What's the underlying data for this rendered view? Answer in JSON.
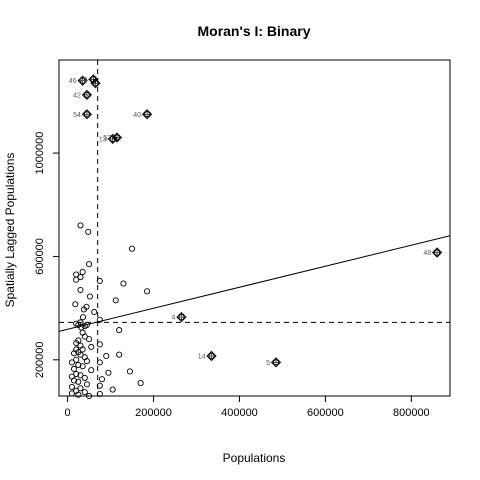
{
  "chart_data": {
    "type": "scatter",
    "title": "Moran's I: Binary",
    "xlabel": "Populations",
    "ylabel": "Spatially Lagged Populations",
    "xlim": [
      -20000,
      890000
    ],
    "ylim": [
      60000,
      1360000
    ],
    "x_ticks": [
      0,
      200000,
      400000,
      600000,
      800000
    ],
    "x_tick_labels": [
      "0",
      "200000",
      "400000",
      "600000",
      "800000"
    ],
    "y_ticks": [
      200000,
      600000,
      1000000
    ],
    "y_tick_labels": [
      "200000",
      "600000",
      "1000000"
    ],
    "mean_x": 70000,
    "mean_y": 345000,
    "regression_line": {
      "x": [
        -20000,
        890000
      ],
      "y": [
        310000,
        680000
      ]
    },
    "influential_points": [
      {
        "label": "46",
        "x": 35000,
        "y": 1280000
      },
      {
        "label": "50",
        "x": 60000,
        "y": 1285000
      },
      {
        "label": "",
        "x": 65000,
        "y": 1270000
      },
      {
        "label": "42",
        "x": 45000,
        "y": 1225000
      },
      {
        "label": "54",
        "x": 45000,
        "y": 1150000
      },
      {
        "label": "40",
        "x": 185000,
        "y": 1150000
      },
      {
        "label": "13",
        "x": 105000,
        "y": 1055000
      },
      {
        "label": "52",
        "x": 115000,
        "y": 1060000
      },
      {
        "label": "4",
        "x": 265000,
        "y": 365000
      },
      {
        "label": "14",
        "x": 335000,
        "y": 215000
      },
      {
        "label": "5",
        "x": 485000,
        "y": 190000
      },
      {
        "label": "48",
        "x": 860000,
        "y": 615000
      }
    ],
    "points": [
      {
        "x": 30000,
        "y": 720000
      },
      {
        "x": 48000,
        "y": 695000
      },
      {
        "x": 150000,
        "y": 630000
      },
      {
        "x": 50000,
        "y": 570000
      },
      {
        "x": 35000,
        "y": 540000
      },
      {
        "x": 20000,
        "y": 530000
      },
      {
        "x": 30000,
        "y": 520000
      },
      {
        "x": 20000,
        "y": 510000
      },
      {
        "x": 75000,
        "y": 505000
      },
      {
        "x": 130000,
        "y": 495000
      },
      {
        "x": 30000,
        "y": 470000
      },
      {
        "x": 185000,
        "y": 465000
      },
      {
        "x": 52000,
        "y": 445000
      },
      {
        "x": 112000,
        "y": 430000
      },
      {
        "x": 18000,
        "y": 415000
      },
      {
        "x": 44000,
        "y": 405000
      },
      {
        "x": 38000,
        "y": 395000
      },
      {
        "x": 62000,
        "y": 385000
      },
      {
        "x": 36000,
        "y": 365000
      },
      {
        "x": 75000,
        "y": 355000
      },
      {
        "x": 30000,
        "y": 345000
      },
      {
        "x": 20000,
        "y": 340000
      },
      {
        "x": 25000,
        "y": 335000
      },
      {
        "x": 45000,
        "y": 335000
      },
      {
        "x": 40000,
        "y": 330000
      },
      {
        "x": 32000,
        "y": 325000
      },
      {
        "x": 120000,
        "y": 315000
      },
      {
        "x": 35000,
        "y": 305000
      },
      {
        "x": 40000,
        "y": 290000
      },
      {
        "x": 50000,
        "y": 280000
      },
      {
        "x": 25000,
        "y": 275000
      },
      {
        "x": 20000,
        "y": 265000
      },
      {
        "x": 75000,
        "y": 260000
      },
      {
        "x": 30000,
        "y": 255000
      },
      {
        "x": 55000,
        "y": 250000
      },
      {
        "x": 35000,
        "y": 240000
      },
      {
        "x": 20000,
        "y": 240000
      },
      {
        "x": 25000,
        "y": 230000
      },
      {
        "x": 15000,
        "y": 225000
      },
      {
        "x": 30000,
        "y": 220000
      },
      {
        "x": 120000,
        "y": 220000
      },
      {
        "x": 90000,
        "y": 215000
      },
      {
        "x": 40000,
        "y": 210000
      },
      {
        "x": 20000,
        "y": 200000
      },
      {
        "x": 45000,
        "y": 195000
      },
      {
        "x": 10000,
        "y": 190000
      },
      {
        "x": 75000,
        "y": 190000
      },
      {
        "x": 25000,
        "y": 180000
      },
      {
        "x": 35000,
        "y": 175000
      },
      {
        "x": 15000,
        "y": 165000
      },
      {
        "x": 55000,
        "y": 160000
      },
      {
        "x": 145000,
        "y": 155000
      },
      {
        "x": 95000,
        "y": 150000
      },
      {
        "x": 20000,
        "y": 145000
      },
      {
        "x": 30000,
        "y": 140000
      },
      {
        "x": 10000,
        "y": 135000
      },
      {
        "x": 40000,
        "y": 130000
      },
      {
        "x": 80000,
        "y": 125000
      },
      {
        "x": 15000,
        "y": 120000
      },
      {
        "x": 25000,
        "y": 115000
      },
      {
        "x": 170000,
        "y": 110000
      },
      {
        "x": 45000,
        "y": 105000
      },
      {
        "x": 75000,
        "y": 100000
      },
      {
        "x": 10000,
        "y": 95000
      },
      {
        "x": 30000,
        "y": 90000
      },
      {
        "x": 105000,
        "y": 85000
      },
      {
        "x": 20000,
        "y": 80000
      },
      {
        "x": 40000,
        "y": 75000
      },
      {
        "x": 10000,
        "y": 70000
      },
      {
        "x": 75000,
        "y": 68000
      },
      {
        "x": 25000,
        "y": 65000
      },
      {
        "x": 50000,
        "y": 60000
      }
    ],
    "grid": false,
    "legend": "none"
  }
}
